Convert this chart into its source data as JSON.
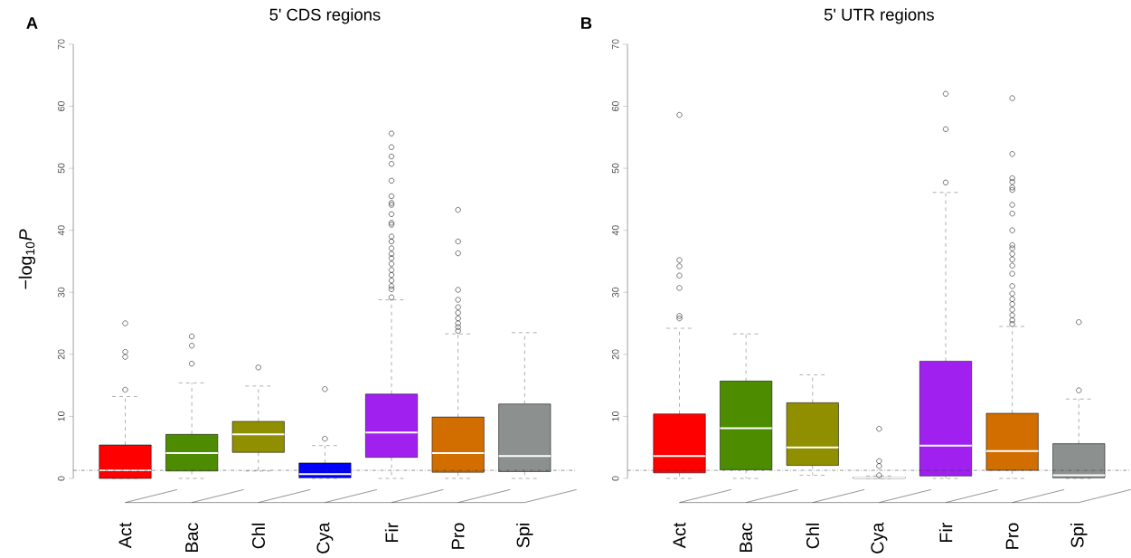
{
  "chart_data": [
    {
      "type": "box",
      "title": "5' CDS regions",
      "ylabel": "−log$_{10}$*P*",
      "annotations": [
        "A"
      ],
      "categories": [
        "Act",
        "Bac",
        "Chl",
        "Cya",
        "Fir",
        "Pro",
        "Spi"
      ],
      "colors": [
        "#ff0000",
        "#4d8c00",
        "#8f8f00",
        "#0000ff",
        "#a020f0",
        "#d26e00",
        "#8c9190"
      ],
      "boxes": [
        {
          "low": 0,
          "q1": 0,
          "median": 1.3,
          "q3": 5.4,
          "high": 13.2,
          "outliers": [
            14.3,
            19.6,
            20.4,
            25.0
          ]
        },
        {
          "low": 0,
          "q1": 1.2,
          "median": 4.1,
          "q3": 7.1,
          "high": 15.4,
          "outliers": [
            18.5,
            21.4,
            22.9
          ]
        },
        {
          "low": 1.2,
          "q1": 4.2,
          "median": 7.1,
          "q3": 9.2,
          "high": 14.9,
          "outliers": [
            17.9
          ]
        },
        {
          "low": 0,
          "q1": 0.1,
          "median": 0.7,
          "q3": 2.5,
          "high": 5.3,
          "outliers": [
            6.4,
            14.4
          ]
        },
        {
          "low": 0,
          "q1": 3.4,
          "median": 7.4,
          "q3": 13.6,
          "high": 28.8,
          "outliers": [
            29.2,
            30.5,
            31.0,
            31.9,
            32.8,
            33.6,
            34.6,
            35.5,
            36.2,
            37.1,
            38.2,
            39.0,
            40.9,
            41.2,
            42.6,
            44.1,
            44.4,
            45.5,
            48.0,
            50.7,
            51.9,
            53.4,
            55.6
          ]
        },
        {
          "low": 0,
          "q1": 1.0,
          "median": 4.1,
          "q3": 9.9,
          "high": 23.3,
          "outliers": [
            23.8,
            24.4,
            25.0,
            25.8,
            26.7,
            27.6,
            28.8,
            30.4,
            36.3,
            38.2,
            43.3
          ]
        },
        {
          "low": 0,
          "q1": 1.1,
          "median": 3.6,
          "q3": 12.0,
          "high": 23.5
        }
      ],
      "ylim": [
        0,
        70
      ],
      "yticks": [
        0,
        10,
        20,
        30,
        40,
        50,
        60,
        70
      ],
      "ref_lines": [
        {
          "axis": "y",
          "value": 1.3,
          "line_style": "dashed"
        }
      ]
    },
    {
      "type": "box",
      "title": "5' UTR regions",
      "annotations": [
        "B"
      ],
      "categories": [
        "Act",
        "Bac",
        "Chl",
        "Cya",
        "Fir",
        "Pro",
        "Spi"
      ],
      "colors": [
        "#ff0000",
        "#4d8c00",
        "#8f8f00",
        "#0000ff",
        "#a020f0",
        "#d26e00",
        "#8c9190"
      ],
      "boxes": [
        {
          "low": 0,
          "q1": 0.9,
          "median": 3.6,
          "q3": 10.4,
          "high": 24.2,
          "outliers": [
            25.8,
            26.2,
            30.7,
            32.7,
            34.2,
            35.2,
            58.6
          ]
        },
        {
          "low": 0,
          "q1": 1.4,
          "median": 8.1,
          "q3": 15.7,
          "high": 23.3
        },
        {
          "low": 0.5,
          "q1": 2.1,
          "median": 5.0,
          "q3": 12.2,
          "high": 16.7
        },
        {
          "low": 0,
          "q1": 0,
          "median": 0.1,
          "q3": 0.2,
          "high": 0.4,
          "outliers": [
            0.5,
            2.0,
            2.8,
            8.0
          ]
        },
        {
          "low": 0,
          "q1": 0.4,
          "median": 5.3,
          "q3": 18.9,
          "high": 46.1,
          "outliers": [
            47.7,
            56.3,
            62.0
          ]
        },
        {
          "low": 0,
          "q1": 1.3,
          "median": 4.4,
          "q3": 10.5,
          "high": 24.5,
          "outliers": [
            24.9,
            25.5,
            26.3,
            27.2,
            28.1,
            28.9,
            29.8,
            31.0,
            33.0,
            34.3,
            35.3,
            36.2,
            37.1,
            37.6,
            40.0,
            42.7,
            44.1,
            46.5,
            46.9,
            47.8,
            48.4,
            52.3,
            61.3
          ]
        },
        {
          "low": 0,
          "q1": 0.1,
          "median": 0.5,
          "q3": 5.6,
          "high": 12.8,
          "outliers": [
            14.2,
            25.2
          ]
        }
      ],
      "ylim": [
        0,
        70
      ],
      "yticks": [
        0,
        10,
        20,
        30,
        40,
        50,
        60,
        70
      ],
      "ref_lines": [
        {
          "axis": "y",
          "value": 1.3,
          "line_style": "dashed"
        }
      ]
    }
  ]
}
